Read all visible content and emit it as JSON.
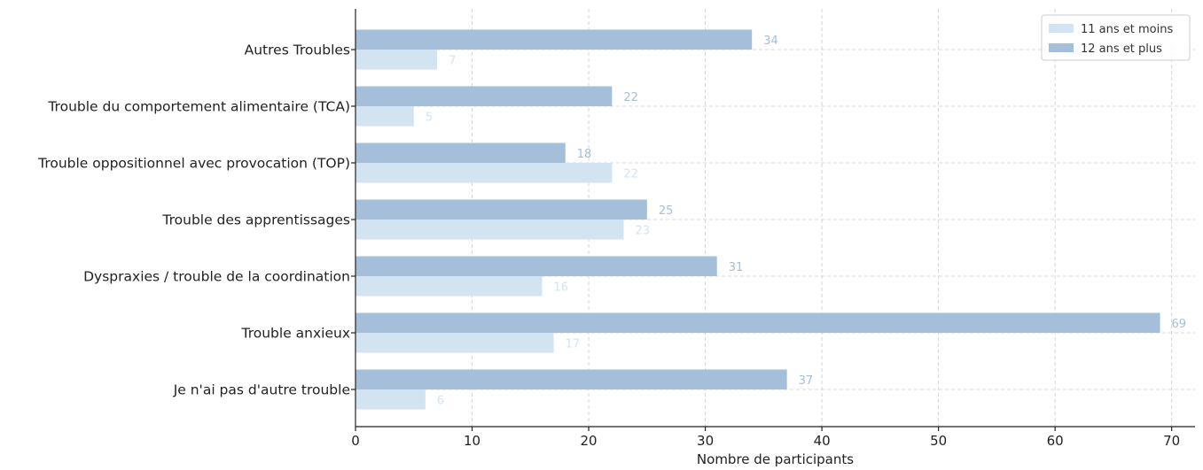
{
  "chart_data": {
    "type": "bar",
    "orientation": "horizontal",
    "xlabel": "Nombre de participants",
    "ylabel": "",
    "xlim": [
      0,
      72
    ],
    "xticks": [
      0,
      10,
      20,
      30,
      40,
      50,
      60,
      70
    ],
    "grid": true,
    "legend_position": "top-right",
    "categories": [
      "Je n'ai pas d'autre trouble",
      "Trouble anxieux",
      "Dyspraxies / trouble de la coordination",
      "Trouble des apprentissages",
      "Trouble oppositionnel avec provocation (TOP)",
      "Trouble du comportement alimentaire (TCA)",
      "Autres Troubles"
    ],
    "series": [
      {
        "name": "11 ans et moins",
        "color": "#d2e4f2",
        "label_color": "#d2e4f2",
        "values": [
          6,
          17,
          16,
          23,
          22,
          5,
          7
        ]
      },
      {
        "name": "12 ans et plus",
        "color": "#a3bfda",
        "label_color": "#a3bfda",
        "values": [
          37,
          69,
          31,
          25,
          18,
          22,
          34
        ]
      }
    ]
  }
}
